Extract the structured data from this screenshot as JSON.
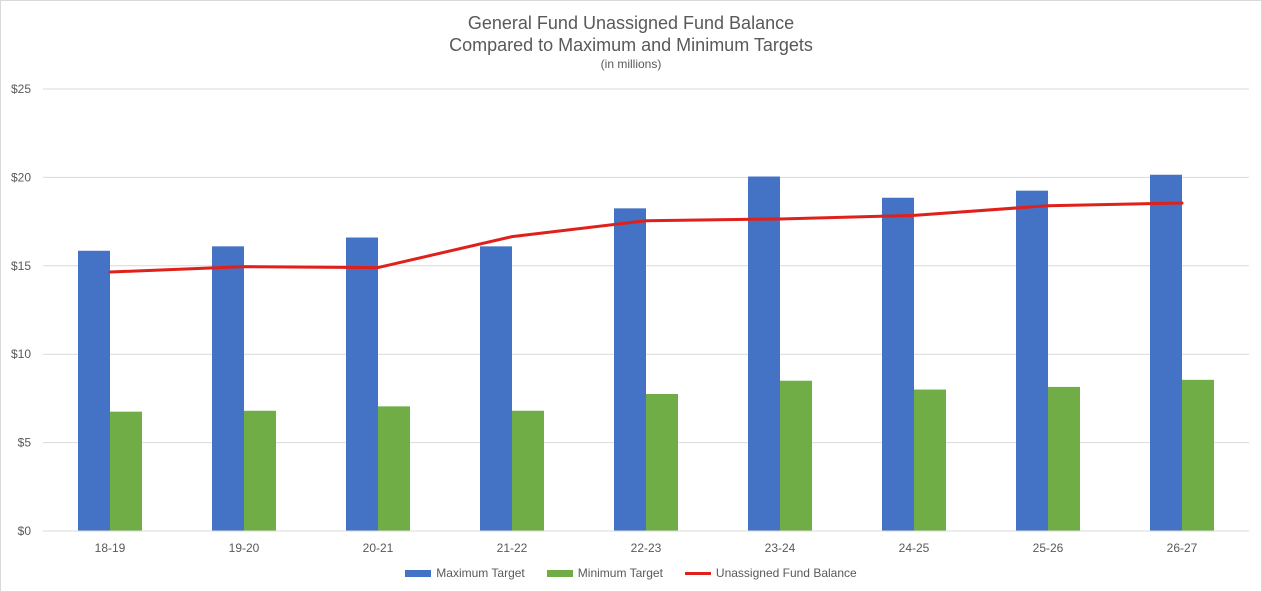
{
  "chart_data": {
    "type": "bar",
    "title": "General Fund Unassigned Fund Balance",
    "title_line2": "Compared to Maximum and Minimum Targets",
    "subtitle": "(in millions)",
    "xlabel": "",
    "ylabel": "",
    "categories": [
      "18-19",
      "19-20",
      "20-21",
      "21-22",
      "22-23",
      "23-24",
      "24-25",
      "25-26",
      "26-27"
    ],
    "y_ticks": [
      "$0",
      "$5",
      "$10",
      "$15",
      "$20",
      "$25"
    ],
    "y_tick_values": [
      0,
      5,
      10,
      15,
      20,
      25
    ],
    "ylim": [
      0,
      25
    ],
    "grid": true,
    "legend_position": "bottom",
    "series": [
      {
        "name": "Maximum Target",
        "type": "bar",
        "color": "#4472c4",
        "values": [
          15.85,
          16.1,
          16.6,
          16.1,
          18.25,
          20.05,
          18.85,
          19.25,
          20.15
        ]
      },
      {
        "name": "Minimum Target",
        "type": "bar",
        "color": "#70ad47",
        "values": [
          6.75,
          6.8,
          7.05,
          6.8,
          7.75,
          8.5,
          8.0,
          8.15,
          8.55
        ]
      },
      {
        "name": "Unassigned Fund Balance",
        "type": "line",
        "color": "#e0201b",
        "values": [
          14.65,
          14.95,
          14.9,
          16.65,
          17.55,
          17.65,
          17.85,
          18.4,
          18.55
        ]
      }
    ]
  }
}
